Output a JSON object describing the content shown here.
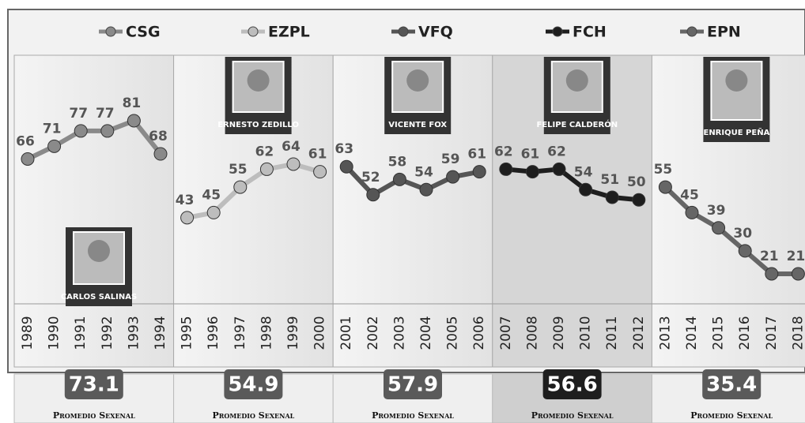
{
  "chart_data": {
    "type": "line",
    "x": [
      "1989",
      "1990",
      "1991",
      "1992",
      "1993",
      "1994",
      "1995",
      "1996",
      "1997",
      "1998",
      "1999",
      "2000",
      "2001",
      "2002",
      "2003",
      "2004",
      "2005",
      "2006",
      "2007",
      "2008",
      "2009",
      "2010",
      "2011",
      "2012",
      "2013",
      "2014",
      "2015",
      "2016",
      "2017",
      "2018"
    ],
    "series": [
      {
        "name": "CSG",
        "color": "#8a8a8a",
        "values": [
          66,
          71,
          77,
          77,
          81,
          68,
          null,
          null,
          null,
          null,
          null,
          null,
          null,
          null,
          null,
          null,
          null,
          null,
          null,
          null,
          null,
          null,
          null,
          null,
          null,
          null,
          null,
          null,
          null,
          null
        ]
      },
      {
        "name": "EZPL",
        "color": "#bdbdbd",
        "values": [
          null,
          null,
          null,
          null,
          null,
          null,
          43,
          45,
          55,
          62,
          64,
          61,
          null,
          null,
          null,
          null,
          null,
          null,
          null,
          null,
          null,
          null,
          null,
          null,
          null,
          null,
          null,
          null,
          null,
          null
        ]
      },
      {
        "name": "VFQ",
        "color": "#555555",
        "values": [
          null,
          null,
          null,
          null,
          null,
          null,
          null,
          null,
          null,
          null,
          null,
          null,
          63,
          52,
          58,
          54,
          59,
          61,
          null,
          null,
          null,
          null,
          null,
          null,
          null,
          null,
          null,
          null,
          null,
          null
        ]
      },
      {
        "name": "FCH",
        "color": "#1e1e1e",
        "values": [
          null,
          null,
          null,
          null,
          null,
          null,
          null,
          null,
          null,
          null,
          null,
          null,
          null,
          null,
          null,
          null,
          null,
          null,
          62,
          61,
          62,
          54,
          51,
          50,
          null,
          null,
          null,
          null,
          null,
          null
        ]
      },
      {
        "name": "EPN",
        "color": "#666666",
        "values": [
          null,
          null,
          null,
          null,
          null,
          null,
          null,
          null,
          null,
          null,
          null,
          null,
          null,
          null,
          null,
          null,
          null,
          null,
          null,
          null,
          null,
          null,
          null,
          null,
          55,
          45,
          39,
          30,
          21,
          21
        ]
      }
    ],
    "periods": [
      {
        "president": "CARLOS SALINAS",
        "average": 73.1,
        "caption": "Promedio Sexenal"
      },
      {
        "president": "ERNESTO ZEDILLO",
        "average": 54.9,
        "caption": "Promedio Sexenal"
      },
      {
        "president": "VICENTE FOX",
        "average": 57.9,
        "caption": "Promedio Sexenal"
      },
      {
        "president": "FELIPE CALDERÓN",
        "average": 56.6,
        "caption": "Promedio Sexenal"
      },
      {
        "president": "ENRIQUE PEÑA",
        "average": 35.4,
        "caption": "Promedio Sexenal"
      }
    ]
  }
}
